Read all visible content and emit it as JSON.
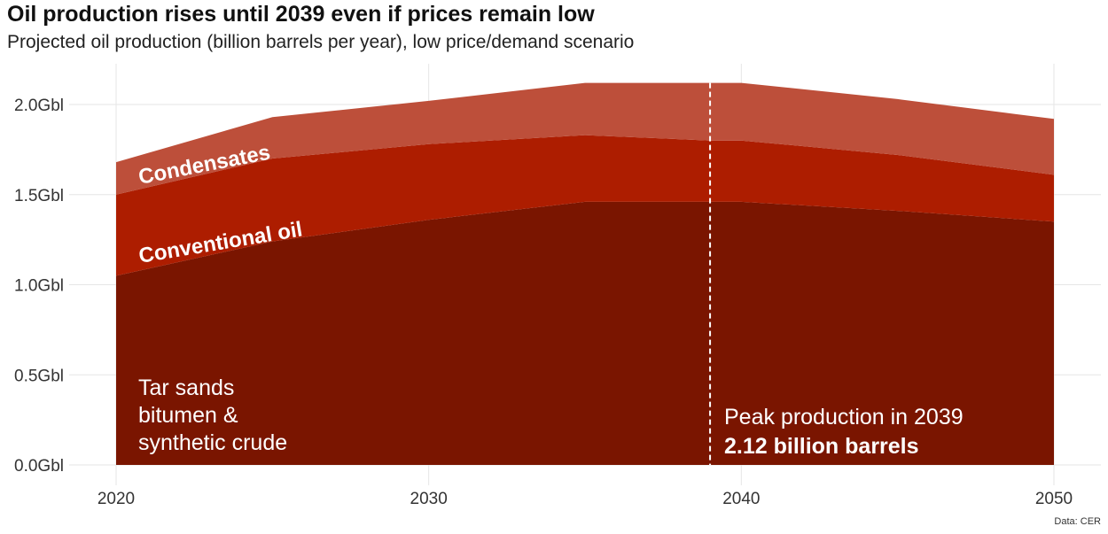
{
  "header": {
    "title": "Oil production rises until 2039 even if prices remain low",
    "subtitle": "Projected oil production (billion barrels per year), low price/demand scenario"
  },
  "source": "Data: CER",
  "chart_data": {
    "type": "area",
    "stacked": true,
    "x": [
      2020,
      2025,
      2030,
      2035,
      2039,
      2040,
      2045,
      2050
    ],
    "xlim": [
      2020,
      2050
    ],
    "ylim": [
      0,
      2.2
    ],
    "x_ticks": [
      2020,
      2030,
      2040,
      2050
    ],
    "y_ticks": [
      0,
      0.5,
      1.0,
      1.5,
      2.0
    ],
    "y_tick_labels": [
      "0.0Gbl",
      "0.5Gbl",
      "1.0Gbl",
      "1.5Gbl",
      "2.0Gbl"
    ],
    "grid": true,
    "series": [
      {
        "name": "Tar sands bitumen & synthetic crude",
        "label_lines": [
          "Tar sands",
          "bitumen &",
          "synthetic crude"
        ],
        "color": "#7a1500",
        "values": [
          1.05,
          1.24,
          1.36,
          1.46,
          1.46,
          1.46,
          1.41,
          1.35
        ]
      },
      {
        "name": "Conventional oil",
        "label_lines": [
          "Conventional oil"
        ],
        "color": "#ad1d00",
        "values": [
          0.45,
          0.46,
          0.42,
          0.37,
          0.34,
          0.34,
          0.31,
          0.26
        ]
      },
      {
        "name": "Condensates",
        "label_lines": [
          "Condensates"
        ],
        "color": "#bd4f3a",
        "values": [
          0.18,
          0.23,
          0.24,
          0.29,
          0.32,
          0.32,
          0.31,
          0.31
        ]
      }
    ],
    "annotation": {
      "x": 2039,
      "value": 2.12,
      "line1": "Peak production in 2039",
      "line2": "2.12 billion barrels"
    }
  }
}
